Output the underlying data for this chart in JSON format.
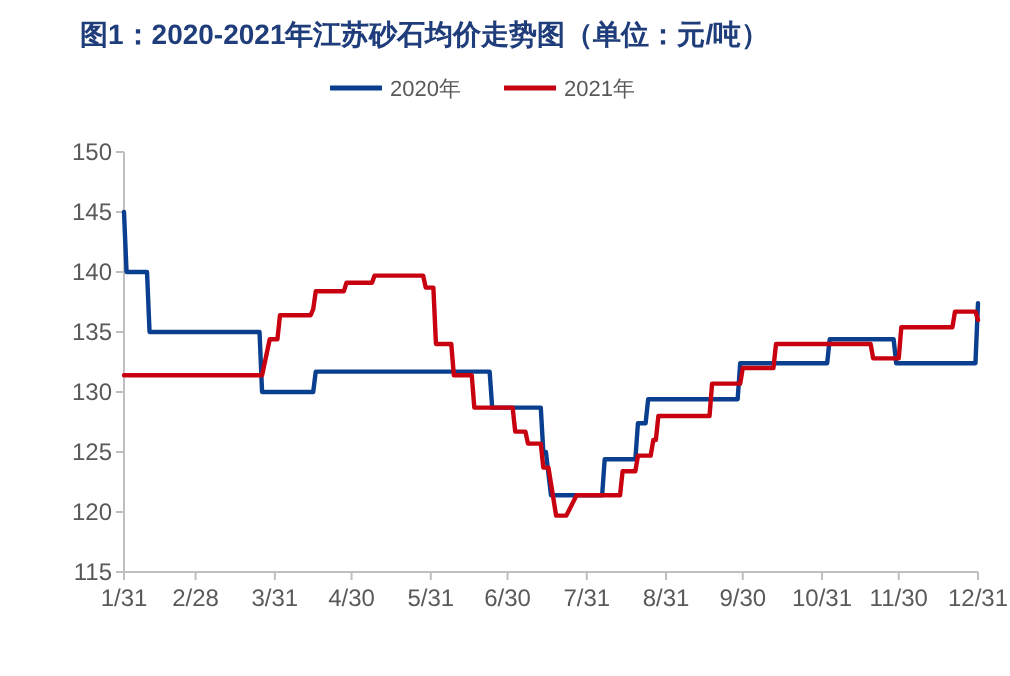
{
  "chart_data": {
    "type": "line",
    "title": "图1：2020-2021年江苏砂石均价走势图（单位：元/吨）",
    "legend": "top",
    "xlim": [
      "--01-31",
      "--12-31"
    ],
    "xticks": [
      {
        "value": "--01-31",
        "label": "1/31"
      },
      {
        "value": "--02-28",
        "label": "2/28"
      },
      {
        "value": "--03-31",
        "label": "3/31"
      },
      {
        "value": "--04-30",
        "label": "4/30"
      },
      {
        "value": "--05-31",
        "label": "5/31"
      },
      {
        "value": "--06-30",
        "label": "6/30"
      },
      {
        "value": "--07-31",
        "label": "7/31"
      },
      {
        "value": "--08-31",
        "label": "8/31"
      },
      {
        "value": "--09-30",
        "label": "9/30"
      },
      {
        "value": "--10-31",
        "label": "10/31"
      },
      {
        "value": "--11-30",
        "label": "11/30"
      },
      {
        "value": "--12-31",
        "label": "12/31"
      }
    ],
    "ylim": [
      115,
      150
    ],
    "yticks": [
      115,
      120,
      125,
      130,
      135,
      140,
      145,
      150
    ],
    "series": [
      {
        "name": "2020年",
        "color": "#0a3f8f",
        "x": [
          "--01-31",
          "--02-01",
          "--02-09",
          "--02-10",
          "--03-25",
          "--03-26",
          "--04-15",
          "--04-16",
          "--06-23",
          "--06-24",
          "--07-13",
          "--07-14",
          "--07-15",
          "--07-17",
          "--08-06",
          "--08-07",
          "--08-19",
          "--08-20",
          "--08-23",
          "--08-24",
          "--09-28",
          "--09-29",
          "--11-02",
          "--11-03",
          "--11-28",
          "--11-29",
          "--12-30",
          "--12-31"
        ],
        "values": [
          145,
          140,
          140,
          135,
          135,
          130,
          130,
          131.7,
          131.7,
          128.7,
          128.7,
          125,
          125,
          121.4,
          121.4,
          124.4,
          124.4,
          127.4,
          127.4,
          129.4,
          129.4,
          132.4,
          132.4,
          134.4,
          134.4,
          132.4,
          132.4,
          137.4
        ]
      },
      {
        "name": "2021年",
        "color": "#c8000f",
        "x": [
          "--01-31",
          "--03-26",
          "--03-29",
          "--04-01",
          "--04-02",
          "--04-14",
          "--04-15",
          "--04-16",
          "--04-27",
          "--04-28",
          "--05-08",
          "--05-09",
          "--05-28",
          "--05-29",
          "--06-01",
          "--06-02",
          "--06-08",
          "--06-09",
          "--06-16",
          "--06-17",
          "--07-02",
          "--07-03",
          "--07-07",
          "--07-08",
          "--07-13",
          "--07-14",
          "--07-16",
          "--07-19",
          "--07-23",
          "--07-27",
          "--08-13",
          "--08-14",
          "--08-19",
          "--08-20",
          "--08-25",
          "--08-26",
          "--08-27",
          "--08-28",
          "--09-17",
          "--09-18",
          "--09-29",
          "--09-30",
          "--10-12",
          "--10-13",
          "--11-19",
          "--11-20",
          "--11-30",
          "--12-01",
          "--12-21",
          "--12-22",
          "--12-30",
          "--12-31"
        ],
        "values": [
          131.4,
          131.4,
          134.4,
          134.4,
          136.4,
          136.4,
          136.9,
          138.4,
          138.4,
          139.1,
          139.1,
          139.7,
          139.7,
          138.7,
          138.7,
          134,
          134,
          131.4,
          131.4,
          128.7,
          128.7,
          126.7,
          126.7,
          125.7,
          125.7,
          123.7,
          123.7,
          119.7,
          119.7,
          121.4,
          121.4,
          123.4,
          123.4,
          124.7,
          124.7,
          126,
          126,
          128,
          128,
          130.7,
          130.7,
          132,
          132,
          134,
          134,
          132.8,
          132.8,
          135.4,
          135.4,
          136.7,
          136.7,
          136
        ]
      }
    ]
  }
}
